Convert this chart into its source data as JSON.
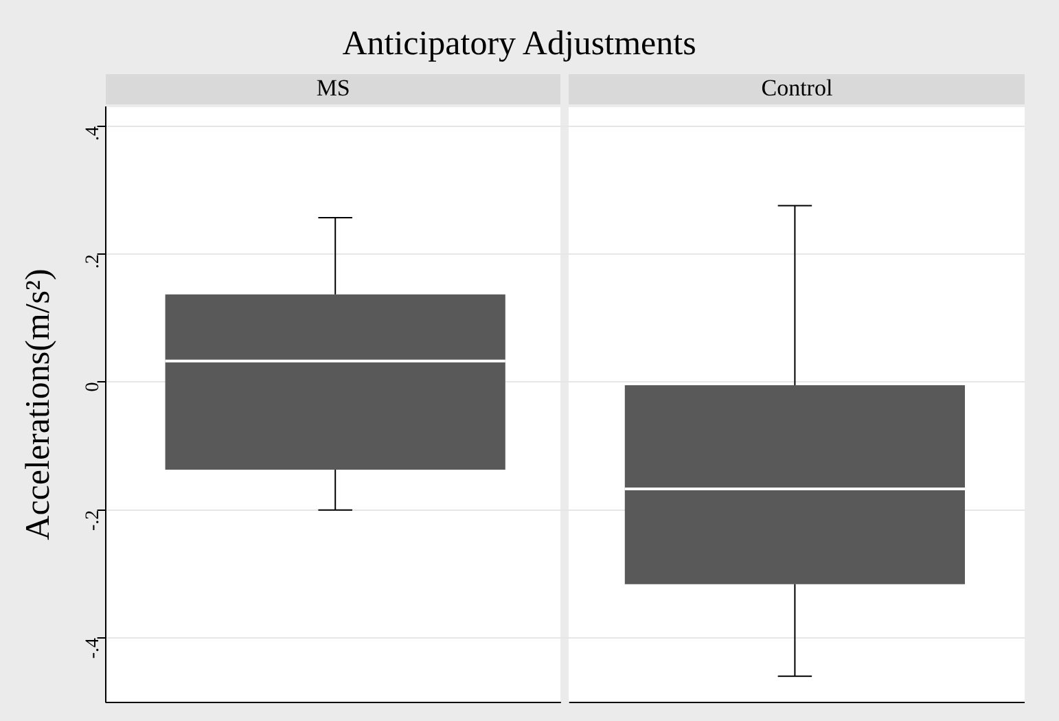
{
  "chart_data": {
    "type": "box",
    "title": "Anticipatory Adjustments",
    "ylabel": "Accelerations(m/s²)",
    "categories": [
      "MS",
      "Control"
    ],
    "boxes": [
      {
        "low": -0.2,
        "q1": -0.137,
        "median": 0.033,
        "q3": 0.137,
        "high": 0.257
      },
      {
        "low": -0.46,
        "q1": -0.316,
        "median": -0.167,
        "q3": -0.005,
        "high": 0.276
      }
    ],
    "color": "#595959",
    "ylim": [
      -0.5,
      0.43
    ],
    "yticks": [
      {
        "value": -0.4,
        "label": "-.4"
      },
      {
        "value": -0.2,
        "label": "-.2"
      },
      0,
      {
        "value": 0.2,
        "label": ".2"
      },
      {
        "value": 0.4,
        "label": ".4"
      }
    ],
    "grid": "y"
  }
}
